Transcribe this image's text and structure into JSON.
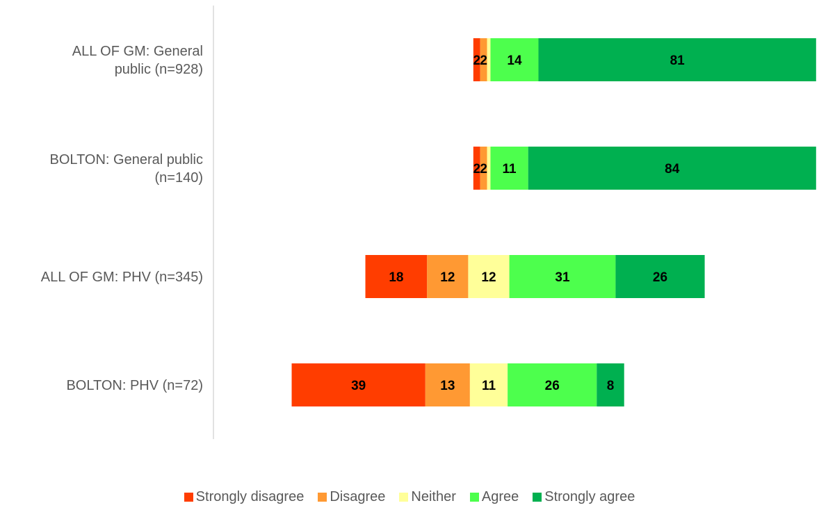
{
  "chart_data": {
    "type": "bar",
    "orientation": "horizontal",
    "stacked": true,
    "layout": "diverging",
    "categories": [
      "ALL OF GM: General public (n=928)",
      "BOLTON: General public (n=140)",
      "ALL OF GM: PHV (n=345)",
      "BOLTON: PHV (n=72)"
    ],
    "category_lines": [
      [
        "ALL OF GM: General",
        "public (n=928)"
      ],
      [
        "BOLTON: General public",
        "(n=140)"
      ],
      [
        "ALL OF GM: PHV (n=345)"
      ],
      [
        "BOLTON: PHV (n=72)"
      ]
    ],
    "series": [
      {
        "name": "Strongly disagree",
        "color": "#ff3d00",
        "values": [
          2,
          2,
          18,
          39
        ],
        "labels": [
          "2",
          "2",
          "18",
          "39"
        ]
      },
      {
        "name": "Disagree",
        "color": "#ff9933",
        "values": [
          2,
          2,
          12,
          13
        ],
        "labels": [
          "2",
          "2",
          "12",
          "13"
        ]
      },
      {
        "name": "Neither",
        "color": "#ffff99",
        "values": [
          1,
          1,
          12,
          11
        ],
        "labels": [
          "",
          "",
          "12",
          "11"
        ]
      },
      {
        "name": "Agree",
        "color": "#4dff4d",
        "values": [
          14,
          11,
          31,
          26
        ],
        "labels": [
          "14",
          "11",
          "31",
          "26"
        ]
      },
      {
        "name": "Strongly agree",
        "color": "#00b050",
        "values": [
          81,
          84,
          26,
          8
        ],
        "labels": [
          "81",
          "84",
          "26",
          "8"
        ]
      }
    ],
    "legend_position": "bottom",
    "grid": false
  }
}
